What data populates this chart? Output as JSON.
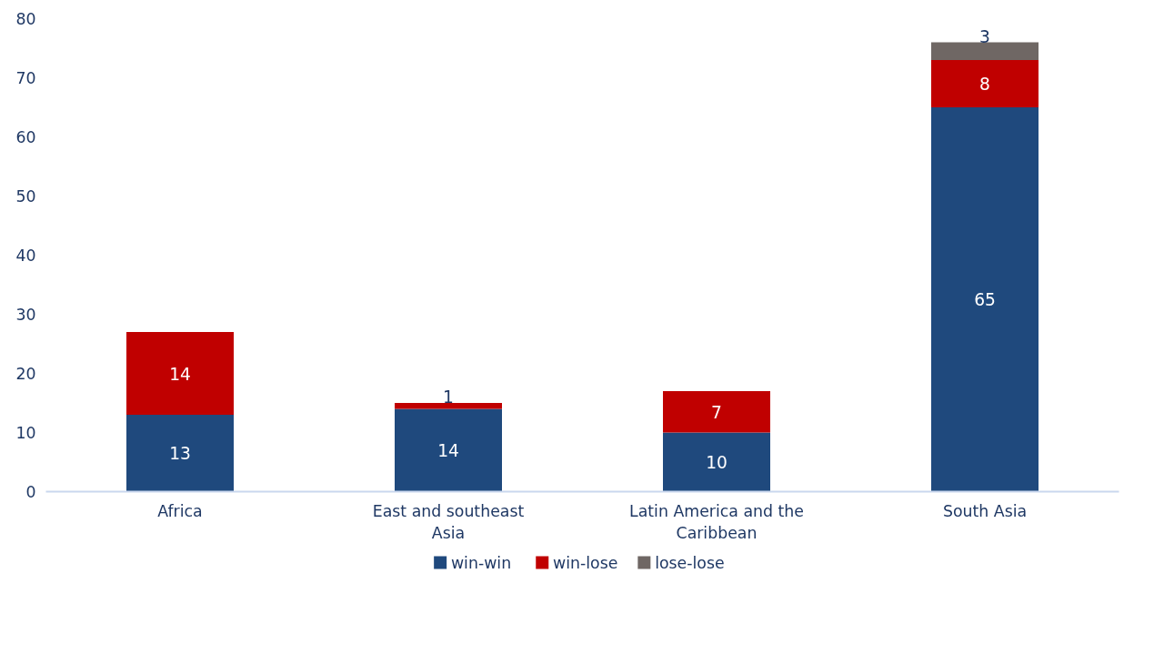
{
  "chart_data": {
    "type": "bar",
    "stacked": true,
    "categories": [
      "Africa",
      "East and southeast Asia",
      "Latin America and the Caribbean",
      "South Asia"
    ],
    "series": [
      {
        "name": "win-win",
        "color": "#1f497d",
        "values": [
          13,
          14,
          10,
          65
        ]
      },
      {
        "name": "win-lose",
        "color": "#c00000",
        "values": [
          14,
          1,
          7,
          8
        ]
      },
      {
        "name": "lose-lose",
        "color": "#6f6764",
        "values": [
          null,
          null,
          null,
          3
        ]
      }
    ],
    "ylim": [
      0,
      80
    ],
    "yticks": [
      0,
      10,
      20,
      30,
      40,
      50,
      60,
      70,
      80
    ],
    "data_labels": true,
    "grid": false,
    "legend": "bottom"
  }
}
